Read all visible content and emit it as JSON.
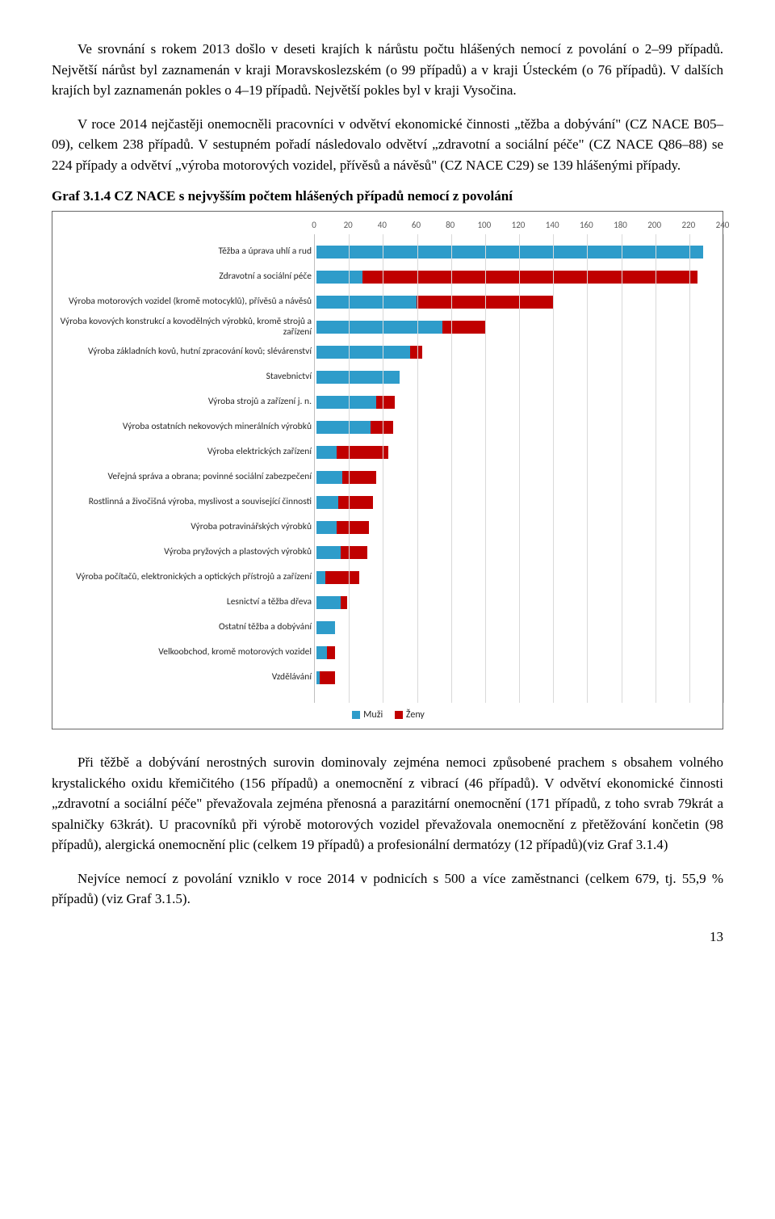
{
  "paragraphs": {
    "p1": "Ve srovnání s rokem 2013 došlo v deseti krajích k nárůstu počtu hlášených nemocí z povolání o 2–99 případů. Největší nárůst byl zaznamenán v kraji Moravskoslezském (o 99 případů) a v kraji Ústeckém (o 76 případů). V dalších krajích byl zaznamenán pokles o 4–19 případů. Největší pokles byl v kraji Vysočina.",
    "p2": "V roce 2014 nejčastěji onemocněli pracovníci v odvětví ekonomické činnosti „těžba a dobývání\" (CZ NACE B05–09), celkem 238 případů. V sestupném pořadí následovalo odvětví „zdravotní a sociální péče\" (CZ NACE Q86–88) se 224 případy a odvětví „výroba motorových vozidel, přívěsů a návěsů\" (CZ NACE C29) se 139 hlášenými případy.",
    "p3": "Při těžbě a dobývání nerostných surovin dominovaly zejména nemoci způsobené prachem s obsahem volného krystalického oxidu křemičitého (156 případů) a onemocnění z vibrací (46 případů). V odvětví ekonomické činnosti „zdravotní a sociální péče\" převažovala zejména přenosná a parazitární onemocnění (171 případů, z toho svrab 79krát a spalničky 63krát). U pracovníků při výrobě motorových vozidel převažovala onemocnění z přetěžování končetin (98 případů), alergická onemocnění plic (celkem 19 případů) a profesionální dermatózy (12 případů)(viz Graf 3.1.4)",
    "p4": "Nejvíce nemocí z povolání vzniklo v roce 2014 v podnicích s 500 a více zaměstnanci (celkem 679, tj. 55,9 % případů) (viz Graf 3.1.5)."
  },
  "chart_title": "Graf 3.1.4  CZ NACE s nejvyšším počtem hlášených případů nemocí z povolání",
  "chart": {
    "type": "stacked-horizontal-bar",
    "xmin": 0,
    "xmax": 240,
    "xtick_step": 20,
    "color_male": "#2e9cca",
    "color_female": "#c00000",
    "grid_color": "#d9d9d9",
    "axis_color": "#bfbfbf",
    "label_fontsize": 11.5,
    "categories": [
      {
        "label": "Těžba a úprava uhlí a rud",
        "male": 227,
        "female": 0
      },
      {
        "label": "Zdravotní a sociální péče",
        "male": 27,
        "female": 197
      },
      {
        "label": "Výroba motorových vozidel (kromě motocyklů), přívěsů a návěsů",
        "male": 59,
        "female": 80
      },
      {
        "label": "Výroba kovových konstrukcí a kovodělných výrobků, kromě strojů a zařízení",
        "male": 74,
        "female": 25
      },
      {
        "label": "Výroba základních kovů, hutní zpracování kovů; slévárenství",
        "male": 55,
        "female": 7
      },
      {
        "label": "Stavebnictví",
        "male": 49,
        "female": 0
      },
      {
        "label": "Výroba strojů a zařízení j. n.",
        "male": 35,
        "female": 11
      },
      {
        "label": "Výroba ostatních nekovových minerálních výrobků",
        "male": 32,
        "female": 13
      },
      {
        "label": "Výroba elektrických zařízení",
        "male": 12,
        "female": 30
      },
      {
        "label": "Veřejná správa a obrana; povinné sociální zabezpečení",
        "male": 15,
        "female": 20
      },
      {
        "label": "Rostlinná a živočišná výroba, myslivost a související činnosti",
        "male": 13,
        "female": 20
      },
      {
        "label": "Výroba potravinářských výrobků",
        "male": 12,
        "female": 19
      },
      {
        "label": "Výroba pryžových a plastových výrobků",
        "male": 14,
        "female": 16
      },
      {
        "label": "Výroba počítačů, elektronických a optických přístrojů a zařízení",
        "male": 5,
        "female": 20
      },
      {
        "label": "Lesnictví a těžba dřeva",
        "male": 14,
        "female": 4
      },
      {
        "label": "Ostatní těžba a dobývání",
        "male": 11,
        "female": 0
      },
      {
        "label": "Velkoobchod, kromě motorových vozidel",
        "male": 6,
        "female": 5
      },
      {
        "label": "Vzdělávání",
        "male": 2,
        "female": 9
      }
    ],
    "legend": {
      "male": "Muži",
      "female": "Ženy"
    }
  },
  "page_number": "13"
}
